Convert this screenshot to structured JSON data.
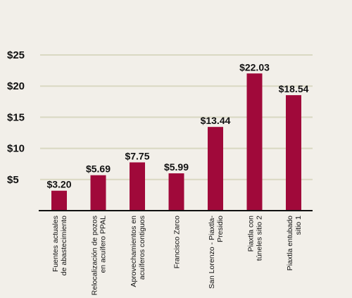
{
  "chart_data": {
    "type": "bar",
    "title": "",
    "xlabel": "",
    "ylabel": "",
    "ylim": [
      0,
      25
    ],
    "yticks": [
      5,
      10,
      15,
      20,
      25
    ],
    "ytick_labels": [
      "$5",
      "$10",
      "$15",
      "$20",
      "$25"
    ],
    "grid": true,
    "bar_color": "#a0093a",
    "grid_color": "#d9d8c2",
    "categories": [
      [
        "Fuentes actuales",
        "de abastecimiento"
      ],
      [
        "Relocalización de pozos",
        "en acuífero PPAL"
      ],
      [
        "Aprovechamientos en",
        "acuíferos contiguos"
      ],
      [
        "Francisco Zarco"
      ],
      [
        "San Lorenzo - Piaxtla-",
        "Presidio"
      ],
      [
        "Piaxtla con",
        "túneles sitio 2"
      ],
      [
        "Piaxtla entubado",
        "sitio 1"
      ]
    ],
    "values": [
      3.2,
      5.69,
      7.75,
      5.99,
      13.44,
      22.03,
      18.54
    ],
    "value_labels": [
      "$3.20",
      "$5.69",
      "$7.75",
      "$5.99",
      "$13.44",
      "$22.03",
      "$18.54"
    ]
  }
}
